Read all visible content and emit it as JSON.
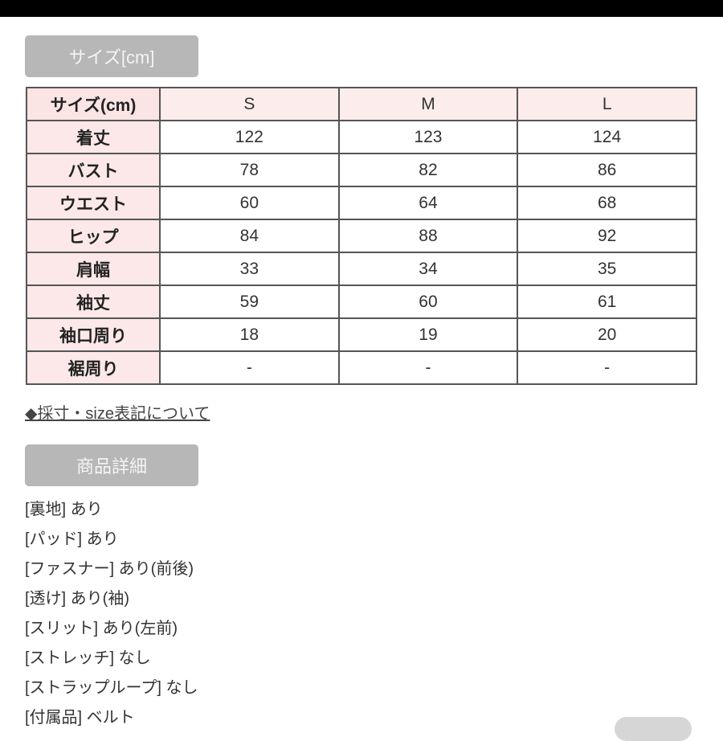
{
  "size_section": {
    "heading": "サイズ[cm]"
  },
  "size_table": {
    "header": [
      "サイズ(cm)",
      "S",
      "M",
      "L"
    ],
    "rows": [
      {
        "label": "着丈",
        "values": [
          "122",
          "123",
          "124"
        ]
      },
      {
        "label": "バスト",
        "values": [
          "78",
          "82",
          "86"
        ]
      },
      {
        "label": "ウエスト",
        "values": [
          "60",
          "64",
          "68"
        ]
      },
      {
        "label": "ヒップ",
        "values": [
          "84",
          "88",
          "92"
        ]
      },
      {
        "label": "肩幅",
        "values": [
          "33",
          "34",
          "35"
        ]
      },
      {
        "label": "袖丈",
        "values": [
          "59",
          "60",
          "61"
        ]
      },
      {
        "label": "袖口周り",
        "values": [
          "18",
          "19",
          "20"
        ]
      },
      {
        "label": "裾周り",
        "values": [
          "-",
          "-",
          "-"
        ]
      }
    ]
  },
  "size_link": "◆採寸・size表記について",
  "details_section": {
    "heading": "商品詳細",
    "items": [
      "[裏地] あり",
      "[パッド] あり",
      "[ファスナー] あり(前後)",
      "[透け] あり(袖)",
      "[スリット] あり(左前)",
      "[ストレッチ] なし",
      "[ストラップループ] なし",
      "[付属品] ベルト"
    ]
  }
}
